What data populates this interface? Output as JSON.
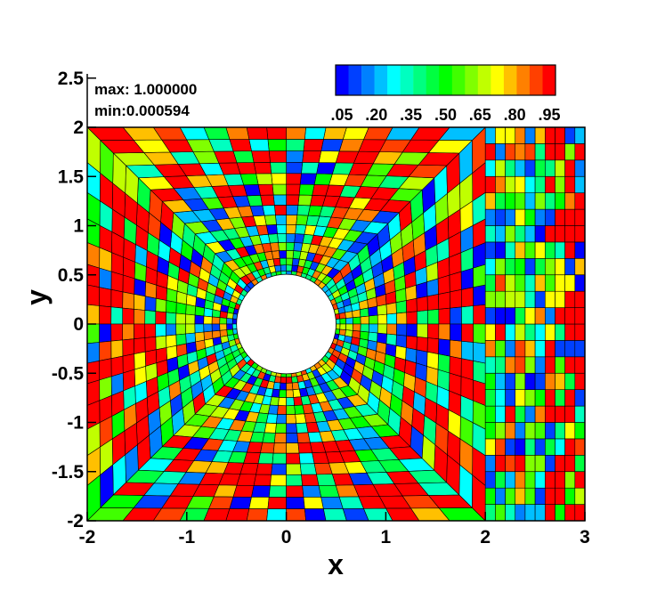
{
  "chart_data": {
    "type": "heatmap",
    "title": "",
    "xlabel": "x",
    "ylabel": "y",
    "xlim": [
      -2,
      3
    ],
    "ylim": [
      -2,
      2
    ],
    "x_ticks": [
      "-2",
      "-1",
      "0",
      "1",
      "2",
      "3"
    ],
    "y_ticks": [
      "2.5",
      "2",
      "1.5",
      "1",
      "0.5",
      "0",
      "-0.5",
      "-1",
      "-1.5",
      "-2"
    ],
    "hole": {
      "center": [
        0,
        0
      ],
      "radius": 0.5
    },
    "annotations": {
      "max": "max: 1.000000",
      "min": "min:0.000594"
    },
    "colorbar": {
      "labels": [
        ".05",
        ".20",
        ".35",
        ".50",
        ".65",
        ".80",
        ".95"
      ],
      "levels": 21,
      "range": [
        0,
        1
      ],
      "colors": [
        "#0000ff",
        "#0040ff",
        "#0080ff",
        "#00c0ff",
        "#00ffff",
        "#00ffc0",
        "#00ff80",
        "#00ff40",
        "#00ff00",
        "#40ff00",
        "#80ff00",
        "#c0ff00",
        "#ffff00",
        "#ffc000",
        "#ff8000",
        "#ff4000",
        "#ff0000"
      ]
    },
    "mesh": {
      "n_radial": 16,
      "n_angular": 64,
      "right_cols": 10,
      "right_rows": 24
    },
    "cell_values_note": "per-cell values in [0,1]"
  }
}
